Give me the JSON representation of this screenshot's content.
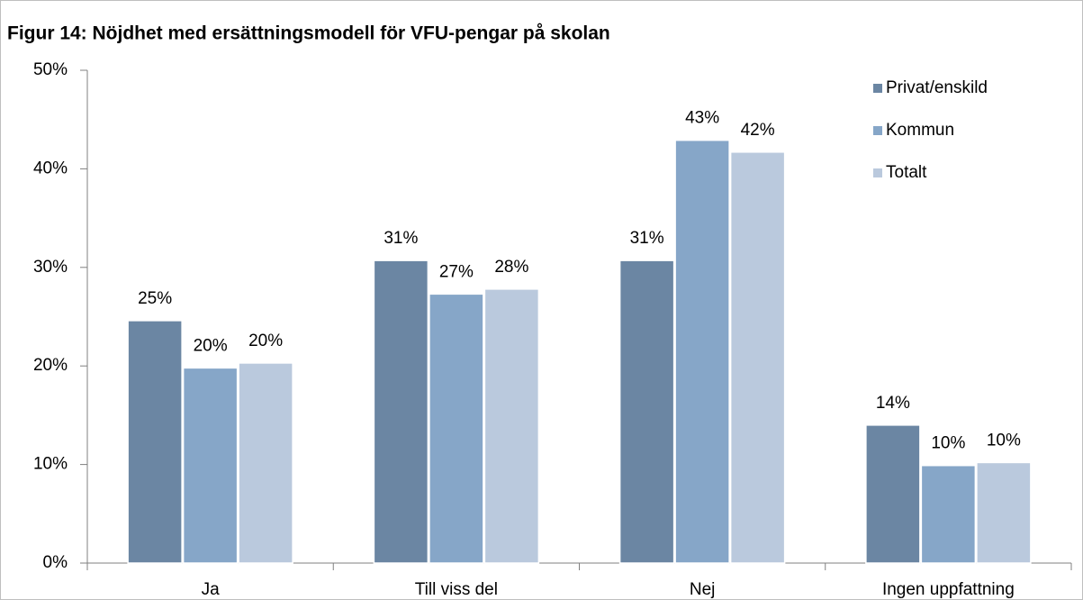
{
  "chart_data": {
    "type": "bar",
    "title": "Figur 14: Nöjdhet med ersättningsmodell för VFU-pengar på skolan",
    "categories": [
      "Ja",
      "Till viss del",
      "Nej",
      "Ingen uppfattning"
    ],
    "series": [
      {
        "name": "Privat/enskild",
        "color": "#6b86a3",
        "values": [
          24.6,
          30.7,
          30.7,
          14.0
        ],
        "value_labels": [
          "25%",
          "31%",
          "31%",
          "14%"
        ]
      },
      {
        "name": "Kommun",
        "color": "#86a6c8",
        "values": [
          19.8,
          27.3,
          42.9,
          9.9
        ],
        "value_labels": [
          "20%",
          "27%",
          "43%",
          "10%"
        ]
      },
      {
        "name": "Totalt",
        "color": "#bac9dd",
        "values": [
          20.3,
          27.8,
          41.7,
          10.2
        ],
        "value_labels": [
          "20%",
          "28%",
          "42%",
          "10%"
        ]
      }
    ],
    "ylim": [
      0,
      50
    ],
    "yticks": [
      {
        "value": 0,
        "label": "0%"
      },
      {
        "value": 10,
        "label": "10%"
      },
      {
        "value": 20,
        "label": "20%"
      },
      {
        "value": 30,
        "label": "30%"
      },
      {
        "value": 40,
        "label": "40%"
      },
      {
        "value": 50,
        "label": "50%"
      }
    ],
    "legend": "upper right"
  }
}
